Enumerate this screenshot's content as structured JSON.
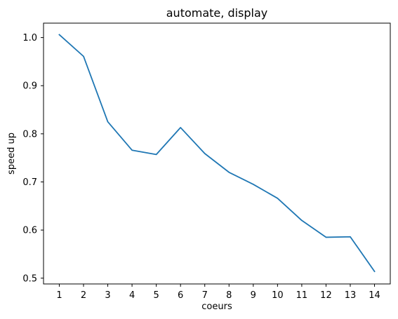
{
  "chart_data": {
    "type": "line",
    "title": "automate, display",
    "xlabel": "coeurs",
    "ylabel": "speed up",
    "x": [
      1,
      2,
      3,
      4,
      5,
      6,
      7,
      8,
      9,
      10,
      11,
      12,
      13,
      14
    ],
    "x_ticks": [
      "1",
      "2",
      "3",
      "4",
      "5",
      "6",
      "7",
      "8",
      "9",
      "10",
      "11",
      "12",
      "13",
      "14"
    ],
    "y_ticks": [
      "0.5",
      "0.6",
      "0.7",
      "0.8",
      "0.9",
      "1.0"
    ],
    "xlim": [
      0.35,
      14.65
    ],
    "ylim": [
      0.488,
      1.03
    ],
    "grid": false,
    "series": [
      {
        "color": "#1f77b4",
        "values": [
          1.006,
          0.961,
          0.825,
          0.766,
          0.757,
          0.813,
          0.759,
          0.72,
          0.695,
          0.666,
          0.62,
          0.585,
          0.586,
          0.514
        ]
      }
    ]
  }
}
